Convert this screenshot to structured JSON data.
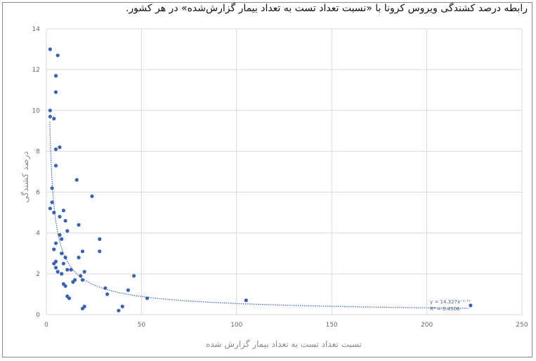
{
  "chart_data": {
    "type": "scatter",
    "title": "رابطه درصد کشندگی ویروس کرونا با «نسبت تعداد تست به تعداد بیمار گزارش‌شده» در هر کشور.",
    "xlabel": "نسبت تعداد تست به تعداد بیمار گزارش شده",
    "ylabel": "درصد کشندگی",
    "xlim": [
      0,
      250
    ],
    "ylim": [
      0,
      14
    ],
    "x_ticks": [
      "0",
      "50",
      "100",
      "150",
      "200",
      "250"
    ],
    "y_ticks": [
      "0",
      "2",
      "4",
      "6",
      "8",
      "10",
      "12",
      "14"
    ],
    "grid": true,
    "legend": "none",
    "colors": {
      "points": "#3a63b5",
      "trendline": "#3a63b5",
      "grid": "#d9d9d9"
    },
    "trendline": {
      "type": "power",
      "a": 14.327,
      "b": -0.71,
      "equation": "y = 14.327x⁻⁰·⁷¹",
      "r2_label": "R² = 0.4506"
    },
    "points": [
      {
        "x": 2,
        "y": 13.0
      },
      {
        "x": 6,
        "y": 12.7
      },
      {
        "x": 5,
        "y": 11.7
      },
      {
        "x": 5,
        "y": 10.9
      },
      {
        "x": 2,
        "y": 10.0
      },
      {
        "x": 2,
        "y": 9.7
      },
      {
        "x": 4,
        "y": 9.6
      },
      {
        "x": 5,
        "y": 8.1
      },
      {
        "x": 7,
        "y": 8.2
      },
      {
        "x": 5,
        "y": 7.3
      },
      {
        "x": 16,
        "y": 6.6
      },
      {
        "x": 3,
        "y": 6.2
      },
      {
        "x": 24,
        "y": 5.8
      },
      {
        "x": 3,
        "y": 5.5
      },
      {
        "x": 2,
        "y": 5.2
      },
      {
        "x": 4,
        "y": 5.0
      },
      {
        "x": 9,
        "y": 5.1
      },
      {
        "x": 7,
        "y": 4.8
      },
      {
        "x": 10,
        "y": 4.6
      },
      {
        "x": 17,
        "y": 4.4
      },
      {
        "x": 11,
        "y": 4.1
      },
      {
        "x": 7,
        "y": 3.9
      },
      {
        "x": 8,
        "y": 3.7
      },
      {
        "x": 28,
        "y": 3.7
      },
      {
        "x": 5,
        "y": 3.5
      },
      {
        "x": 4,
        "y": 3.2
      },
      {
        "x": 19,
        "y": 3.1
      },
      {
        "x": 28,
        "y": 3.1
      },
      {
        "x": 8,
        "y": 3.0
      },
      {
        "x": 10,
        "y": 2.8
      },
      {
        "x": 17,
        "y": 2.8
      },
      {
        "x": 5,
        "y": 2.6
      },
      {
        "x": 4,
        "y": 2.5
      },
      {
        "x": 5,
        "y": 2.3
      },
      {
        "x": 9,
        "y": 2.5
      },
      {
        "x": 13,
        "y": 2.2
      },
      {
        "x": 6,
        "y": 2.1
      },
      {
        "x": 11,
        "y": 2.2
      },
      {
        "x": 20,
        "y": 2.1
      },
      {
        "x": 18,
        "y": 1.9
      },
      {
        "x": 8,
        "y": 2.0
      },
      {
        "x": 46,
        "y": 1.9
      },
      {
        "x": 15,
        "y": 1.7
      },
      {
        "x": 19,
        "y": 1.7
      },
      {
        "x": 9,
        "y": 1.5
      },
      {
        "x": 10,
        "y": 1.4
      },
      {
        "x": 14,
        "y": 1.6
      },
      {
        "x": 31,
        "y": 1.3
      },
      {
        "x": 43,
        "y": 1.2
      },
      {
        "x": 32,
        "y": 1.0
      },
      {
        "x": 11,
        "y": 0.9
      },
      {
        "x": 12,
        "y": 0.8
      },
      {
        "x": 53,
        "y": 0.8
      },
      {
        "x": 105,
        "y": 0.7
      },
      {
        "x": 20,
        "y": 0.4
      },
      {
        "x": 19,
        "y": 0.3
      },
      {
        "x": 40,
        "y": 0.4
      },
      {
        "x": 38,
        "y": 0.2
      },
      {
        "x": 223,
        "y": 0.45
      }
    ]
  }
}
